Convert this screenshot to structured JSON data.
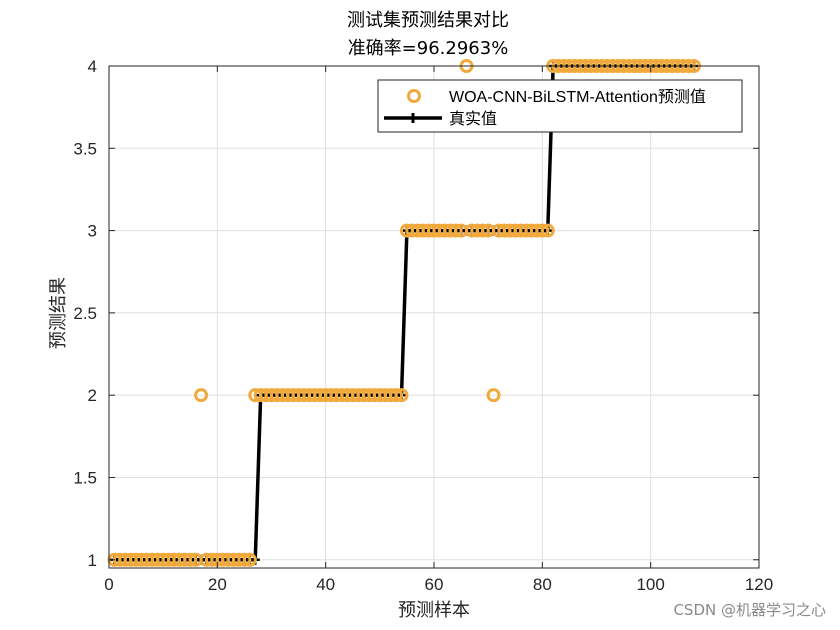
{
  "chart_data": {
    "type": "line",
    "title": "测试集预测结果对比",
    "subtitle": "准确率=96.2963%",
    "xlabel": "预测样本",
    "ylabel": "预测结果",
    "xlim": [
      0,
      120
    ],
    "ylim": [
      0.95,
      4.0
    ],
    "xticks": [
      0,
      20,
      40,
      60,
      80,
      100,
      120
    ],
    "yticks": [
      1,
      1.5,
      2,
      2.5,
      3,
      3.5,
      4
    ],
    "grid": true,
    "legend_position": "top-right",
    "series": [
      {
        "name": "WOA-CNN-BiLSTM-Attention预测值",
        "style": "circle-markers",
        "color": "#f2a93b",
        "x": [
          1,
          2,
          3,
          4,
          5,
          6,
          7,
          8,
          9,
          10,
          11,
          12,
          13,
          14,
          15,
          16,
          17,
          18,
          19,
          20,
          21,
          22,
          23,
          24,
          25,
          26,
          27,
          28,
          29,
          30,
          31,
          32,
          33,
          34,
          35,
          36,
          37,
          38,
          39,
          40,
          41,
          42,
          43,
          44,
          45,
          46,
          47,
          48,
          49,
          50,
          51,
          52,
          53,
          54,
          55,
          56,
          57,
          58,
          59,
          60,
          61,
          62,
          63,
          64,
          65,
          66,
          67,
          68,
          69,
          70,
          71,
          72,
          73,
          74,
          75,
          76,
          77,
          78,
          79,
          80,
          81,
          82,
          83,
          84,
          85,
          86,
          87,
          88,
          89,
          90,
          91,
          92,
          93,
          94,
          95,
          96,
          97,
          98,
          99,
          100,
          101,
          102,
          103,
          104,
          105,
          106,
          107,
          108
        ],
        "y": [
          1,
          1,
          1,
          1,
          1,
          1,
          1,
          1,
          1,
          1,
          1,
          1,
          1,
          1,
          1,
          1,
          2,
          1,
          1,
          1,
          1,
          1,
          1,
          1,
          1,
          1,
          2,
          2,
          2,
          2,
          2,
          2,
          2,
          2,
          2,
          2,
          2,
          2,
          2,
          2,
          2,
          2,
          2,
          2,
          2,
          2,
          2,
          2,
          2,
          2,
          2,
          2,
          2,
          2,
          3,
          3,
          3,
          3,
          3,
          3,
          3,
          3,
          3,
          3,
          3,
          4,
          3,
          3,
          3,
          3,
          2,
          3,
          3,
          3,
          3,
          3,
          3,
          3,
          3,
          3,
          3,
          4,
          4,
          4,
          4,
          4,
          4,
          4,
          4,
          4,
          4,
          4,
          4,
          4,
          4,
          4,
          4,
          4,
          4,
          4,
          4,
          4,
          4,
          4,
          4,
          4,
          4,
          4
        ]
      },
      {
        "name": "真实值",
        "style": "line-plus-markers",
        "color": "#000000",
        "x": [
          1,
          2,
          3,
          4,
          5,
          6,
          7,
          8,
          9,
          10,
          11,
          12,
          13,
          14,
          15,
          16,
          17,
          18,
          19,
          20,
          21,
          22,
          23,
          24,
          25,
          26,
          27,
          28,
          29,
          30,
          31,
          32,
          33,
          34,
          35,
          36,
          37,
          38,
          39,
          40,
          41,
          42,
          43,
          44,
          45,
          46,
          47,
          48,
          49,
          50,
          51,
          52,
          53,
          54,
          55,
          56,
          57,
          58,
          59,
          60,
          61,
          62,
          63,
          64,
          65,
          66,
          67,
          68,
          69,
          70,
          71,
          72,
          73,
          74,
          75,
          76,
          77,
          78,
          79,
          80,
          81,
          82,
          83,
          84,
          85,
          86,
          87,
          88,
          89,
          90,
          91,
          92,
          93,
          94,
          95,
          96,
          97,
          98,
          99,
          100,
          101,
          102,
          103,
          104,
          105,
          106,
          107,
          108
        ],
        "y": [
          1,
          1,
          1,
          1,
          1,
          1,
          1,
          1,
          1,
          1,
          1,
          1,
          1,
          1,
          1,
          1,
          1,
          1,
          1,
          1,
          1,
          1,
          1,
          1,
          1,
          1,
          1,
          2,
          2,
          2,
          2,
          2,
          2,
          2,
          2,
          2,
          2,
          2,
          2,
          2,
          2,
          2,
          2,
          2,
          2,
          2,
          2,
          2,
          2,
          2,
          2,
          2,
          2,
          2,
          3,
          3,
          3,
          3,
          3,
          3,
          3,
          3,
          3,
          3,
          3,
          3,
          3,
          3,
          3,
          3,
          3,
          3,
          3,
          3,
          3,
          3,
          3,
          3,
          3,
          3,
          3,
          4,
          4,
          4,
          4,
          4,
          4,
          4,
          4,
          4,
          4,
          4,
          4,
          4,
          4,
          4,
          4,
          4,
          4,
          4,
          4,
          4,
          4,
          4,
          4,
          4,
          4,
          4
        ]
      }
    ]
  },
  "watermark": "CSDN @机器学习之心"
}
